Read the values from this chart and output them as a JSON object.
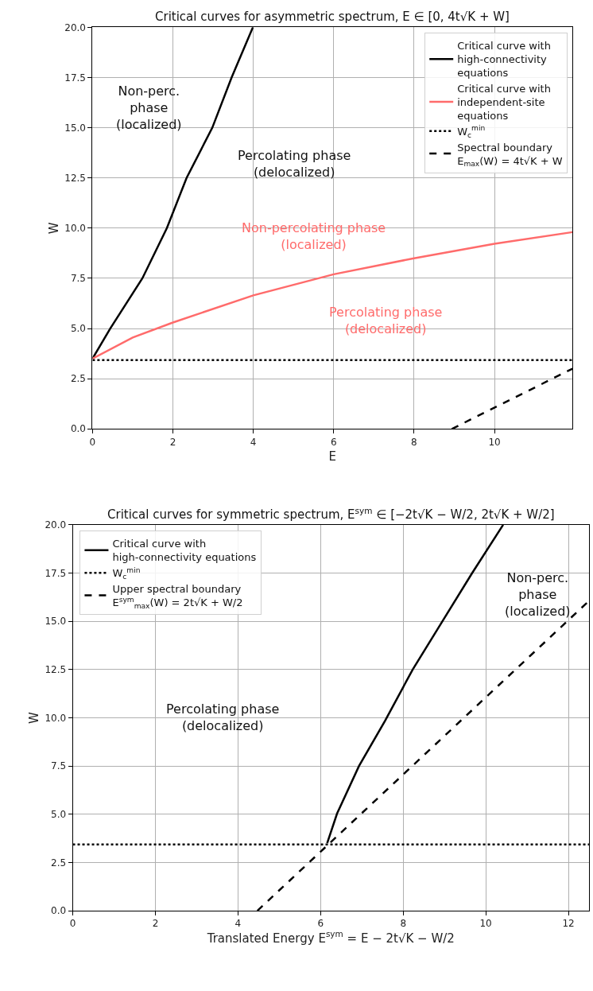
{
  "chart_data": [
    {
      "type": "line",
      "title": "Critical curves for asymmetric spectrum, E ∈ [0, 4t√K + W]",
      "xlabel": "E",
      "ylabel": "W",
      "xlim": [
        0,
        11.94
      ],
      "ylim": [
        0,
        20
      ],
      "xticks": [
        0,
        2,
        4,
        6,
        8,
        10
      ],
      "yticks": [
        {
          "value": 0,
          "label": "0.0"
        },
        {
          "value": 2.5,
          "label": "2.5"
        },
        {
          "value": 5,
          "label": "5.0"
        },
        {
          "value": 7.5,
          "label": "7.5"
        },
        {
          "value": 10,
          "label": "10.0"
        },
        {
          "value": 12.5,
          "label": "12.5"
        },
        {
          "value": 15,
          "label": "15.0"
        },
        {
          "value": 17.5,
          "label": "17.5"
        },
        {
          "value": 20,
          "label": "20.0"
        }
      ],
      "grid": true,
      "legend": "top right",
      "series": [
        {
          "name": "Critical curve with\nhigh-connectivity\nequations",
          "color": "#000000",
          "line_style": "solid",
          "x": [
            0,
            0.44,
            1.24,
            1.85,
            2.34,
            2.98,
            3.46,
            3.99
          ],
          "values": [
            3.5,
            5,
            7.5,
            10,
            12.5,
            15,
            17.5,
            20
          ]
        },
        {
          "name": "Critical curve with\nindependent-site\nequations",
          "color": "#ff6b6b",
          "line_style": "solid",
          "x": [
            0,
            1,
            2,
            4,
            6,
            8,
            10,
            11.94
          ],
          "values": [
            3.5,
            4.55,
            5.3,
            6.65,
            7.7,
            8.5,
            9.22,
            9.8
          ]
        },
        {
          "name": "W$_{c}$$^{min}$",
          "color": "#000000",
          "line_style": "dotted",
          "x": [
            0,
            11.94
          ],
          "values": [
            3.43,
            3.43
          ]
        },
        {
          "name": "Spectral boundary\nE$_{max}$(W) = 4t√K + W",
          "color": "#000000",
          "line_style": "dashed",
          "x": [
            8.94,
            11.94
          ],
          "values": [
            0,
            3
          ]
        }
      ],
      "annotations": [
        "Non-perc.\nphase\n(localized)",
        "Percolating phase\n(delocalized)",
        "Non-percolating phase\n(localized)",
        "Percolating phase\n(delocalized)"
      ]
    },
    {
      "type": "line",
      "title": "Critical curves for symmetric spectrum, E$^{sym}$ ∈ [−2t√K − W/2, 2t√K + W/2]",
      "xlabel": "Translated Energy E$^{sym}$ = E − 2t√K − W/2",
      "ylabel": "W",
      "xlim": [
        0,
        12.5
      ],
      "ylim": [
        0,
        20
      ],
      "xticks": [
        0,
        2,
        4,
        6,
        8,
        10,
        12
      ],
      "yticks": [
        {
          "value": 0,
          "label": "0.0"
        },
        {
          "value": 2.5,
          "label": "2.5"
        },
        {
          "value": 5,
          "label": "5.0"
        },
        {
          "value": 7.5,
          "label": "7.5"
        },
        {
          "value": 10,
          "label": "10.0"
        },
        {
          "value": 12.5,
          "label": "12.5"
        },
        {
          "value": 15,
          "label": "15.0"
        },
        {
          "value": 17.5,
          "label": "17.5"
        },
        {
          "value": 20,
          "label": "20.0"
        }
      ],
      "grid": true,
      "legend": "top left",
      "series": [
        {
          "name": "Critical curve with\nhigh-connectivity equations",
          "color": "#000000",
          "line_style": "solid",
          "x": [
            6.16,
            6.4,
            6.93,
            7.56,
            8.23,
            8.95,
            9.67,
            10.42
          ],
          "values": [
            3.5,
            5.04,
            7.5,
            9.84,
            12.5,
            15,
            17.5,
            20
          ]
        },
        {
          "name": "W$_{c}$$^{min}$",
          "color": "#000000",
          "line_style": "dotted",
          "x": [
            0,
            12.5
          ],
          "values": [
            3.43,
            3.43
          ]
        },
        {
          "name": "Upper spectral boundary\nE$^{sym}$$_{max}$(W) = 2t√K + W/2",
          "color": "#000000",
          "line_style": "dashed",
          "x": [
            4.47,
            12.5
          ],
          "values": [
            0,
            16.06
          ]
        }
      ],
      "annotations": [
        "Percolating phase\n(delocalized)",
        "Non-perc.\nphase\n(localized)"
      ]
    }
  ]
}
